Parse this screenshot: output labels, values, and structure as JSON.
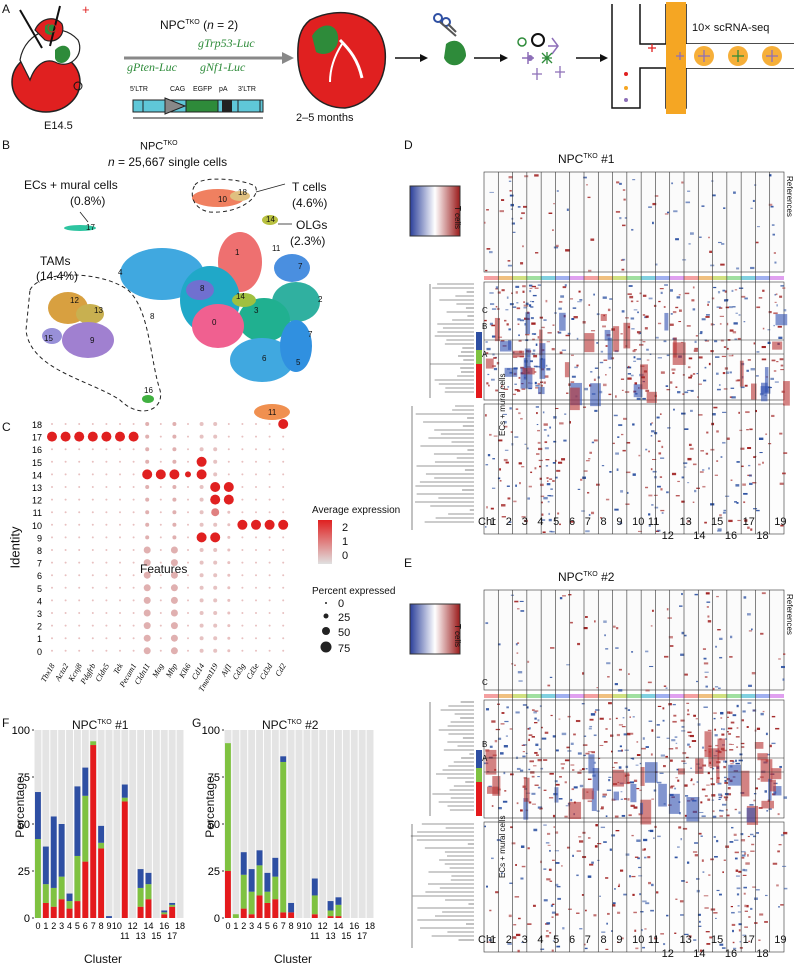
{
  "panels": {
    "A": "A",
    "B": "B",
    "C": "C",
    "D": "D",
    "E": "E",
    "F": "F",
    "G": "G"
  },
  "panelA": {
    "group": "NPCTKO (n = 2)",
    "group_main": "NPC",
    "group_sup": "TKO",
    "group_n": "(n = 2)",
    "vectors": [
      "gTrp53-Luc",
      "gPten-Luc",
      "gNf1-Luc"
    ],
    "construct": [
      "5'LTR",
      "CAG",
      "EGFP",
      "pA",
      "3'LTR"
    ],
    "stage": "E14.5",
    "duration": "2–5 months",
    "assay": "10× scRNA-seq",
    "plus_sign": "+",
    "minus_sign": "−",
    "colors": {
      "green": "#2e8b3a",
      "red": "#e02020",
      "orange": "#f5a623",
      "vector_bar": "#5fc7d8"
    }
  },
  "panelB": {
    "title_main": "NPC",
    "title_sup": "TKO",
    "subtitle": "n = 25,667 single cells",
    "subtitle_n": "n",
    "subtitle_rest": " = 25,667 single cells",
    "annotations": [
      {
        "label": "ECs + mural cells",
        "pct": "(0.8%)"
      },
      {
        "label": "T cells",
        "pct": "(4.6%)"
      },
      {
        "label": "OLGs",
        "pct": "(2.3%)"
      },
      {
        "label": "TAMs",
        "pct": "(14.4%)"
      }
    ],
    "cluster_labels": [
      "0",
      "1",
      "2",
      "3",
      "4",
      "5",
      "6",
      "7",
      "7",
      "8",
      "8",
      "9",
      "10",
      "11",
      "11",
      "12",
      "13",
      "14",
      "14",
      "15",
      "16",
      "17",
      "18"
    ]
  },
  "panelC": {
    "ylabel": "Identity",
    "xlabel": "Features",
    "identities": [
      "18",
      "17",
      "16",
      "15",
      "14",
      "13",
      "12",
      "11",
      "10",
      "9",
      "8",
      "7",
      "6",
      "5",
      "4",
      "3",
      "2",
      "1",
      "0"
    ],
    "features": [
      "Tbx18",
      "Acta2",
      "Kcnj8",
      "Pdgfrb",
      "Cldn5",
      "Tek",
      "Pecam1",
      "Cldn11",
      "Mag",
      "Mbp",
      "Klk6",
      "Cd14",
      "Tmem119",
      "Aif1",
      "Cd3g",
      "Cd3e",
      "Cd3d",
      "Cd2"
    ],
    "legend_expr_title": "Average expression",
    "legend_expr_ticks": [
      "2",
      "1",
      "0"
    ],
    "legend_pct_title": "Percent expressed",
    "legend_pct_ticks": [
      "0",
      "25",
      "50",
      "75"
    ]
  },
  "panelD": {
    "title_main": "NPC",
    "title_sup": "TKO",
    "title_suffix": " #1",
    "row_labels": {
      "tcells": "T cells",
      "ecs": "ECs + mural cells",
      "refs": "References"
    },
    "subclones": [
      "C",
      "B",
      "A"
    ],
    "chr_label": "Chr",
    "chr_top": [
      "1",
      "2",
      "3",
      "4",
      "5",
      "6",
      "7",
      "8",
      "9",
      "10",
      "11",
      "13",
      "15",
      "17",
      "19"
    ],
    "chr_bottom": [
      "12",
      "14",
      "16",
      "18"
    ]
  },
  "panelE": {
    "title_main": "NPC",
    "title_sup": "TKO",
    "title_suffix": " #2",
    "row_labels": {
      "tcells": "T cells",
      "ecs": "ECs + mural cells",
      "refs": "References"
    },
    "subclones": [
      "C",
      "B",
      "A"
    ],
    "chr_label": "Chr",
    "chr_top": [
      "1",
      "2",
      "3",
      "4",
      "5",
      "6",
      "7",
      "8",
      "9",
      "10",
      "11",
      "13",
      "15",
      "17",
      "19"
    ],
    "chr_bottom": [
      "12",
      "14",
      "16",
      "18"
    ]
  },
  "chart_data": [
    {
      "type": "bar",
      "panel": "F",
      "title": "NPCTKO #1",
      "title_main": "NPC",
      "title_sup": "TKO",
      "title_suffix": " #1",
      "xlabel": "Cluster",
      "ylabel": "Percentage",
      "ylim": [
        0,
        100
      ],
      "yticks": [
        "0",
        "25",
        "50",
        "75",
        "100"
      ],
      "categories": [
        "0",
        "1",
        "2",
        "3",
        "4",
        "5",
        "6",
        "7",
        "8",
        "9",
        "10",
        "11",
        "12",
        "13",
        "14",
        "15",
        "16",
        "17",
        "18"
      ],
      "tick_top": [
        "0",
        "1",
        "2",
        "3",
        "4",
        "5",
        "6",
        "7",
        "8",
        "9",
        "10",
        "12",
        "14",
        "16",
        "18"
      ],
      "tick_bottom": [
        "11",
        "13",
        "15",
        "17"
      ],
      "series": [
        {
          "color": "#e41a1c",
          "values": [
            0,
            8,
            6,
            10,
            5,
            9,
            30,
            92,
            37,
            0,
            0,
            62,
            0,
            6,
            10,
            0,
            2,
            6,
            0
          ]
        },
        {
          "color": "#7fc241",
          "values": [
            42,
            10,
            10,
            12,
            4,
            24,
            35,
            2,
            3,
            0,
            0,
            2,
            0,
            10,
            8,
            0,
            1,
            1,
            0
          ]
        },
        {
          "color": "#2e4fa3",
          "values": [
            25,
            20,
            38,
            28,
            4,
            37,
            15,
            0,
            9,
            1,
            0,
            7,
            0,
            10,
            6,
            0,
            1,
            1,
            0
          ]
        }
      ]
    },
    {
      "type": "bar",
      "panel": "G",
      "title": "NPCTKO #2",
      "title_main": "NPC",
      "title_sup": "TKO",
      "title_suffix": " #2",
      "xlabel": "Cluster",
      "ylabel": "Percentage",
      "ylim": [
        0,
        100
      ],
      "yticks": [
        "0",
        "25",
        "50",
        "75",
        "100"
      ],
      "categories": [
        "0",
        "1",
        "2",
        "3",
        "4",
        "5",
        "6",
        "7",
        "8",
        "9",
        "10",
        "11",
        "12",
        "13",
        "14",
        "15",
        "16",
        "17",
        "18"
      ],
      "tick_top": [
        "0",
        "1",
        "2",
        "3",
        "4",
        "5",
        "6",
        "7",
        "8",
        "9",
        "10",
        "12",
        "14",
        "16",
        "18"
      ],
      "tick_bottom": [
        "11",
        "13",
        "15",
        "17"
      ],
      "series": [
        {
          "color": "#e41a1c",
          "values": [
            25,
            0,
            5,
            2,
            12,
            8,
            10,
            3,
            3,
            0,
            0,
            2,
            0,
            1,
            1,
            0,
            0,
            0,
            0
          ]
        },
        {
          "color": "#7fc241",
          "values": [
            68,
            2,
            18,
            12,
            16,
            6,
            12,
            80,
            0,
            0,
            0,
            10,
            0,
            3,
            6,
            0,
            0,
            0,
            0
          ]
        },
        {
          "color": "#2e4fa3",
          "values": [
            0,
            0,
            12,
            12,
            8,
            10,
            10,
            3,
            5,
            0,
            0,
            9,
            0,
            5,
            4,
            0,
            0,
            0,
            0
          ]
        }
      ]
    }
  ]
}
